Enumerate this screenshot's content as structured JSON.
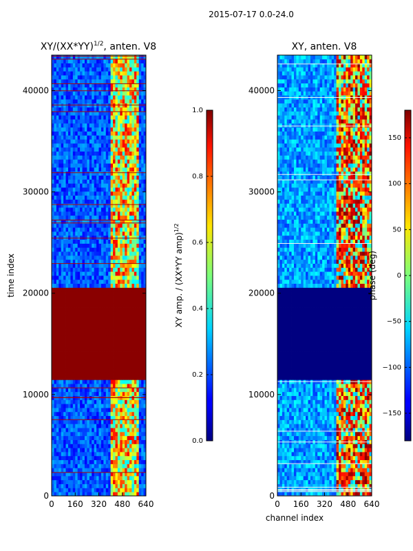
{
  "figure": {
    "title": "2015-07-17 0.0-24.0"
  },
  "chart_data": [
    {
      "type": "heatmap",
      "title_main": "XY/(XX*YY)",
      "title_sup": "1/2",
      "title_rest": ", anten. V8",
      "xlabel": "",
      "ylabel": "time index",
      "xlim": [
        0,
        640
      ],
      "ylim": [
        0,
        43500
      ],
      "xticks": [
        0,
        160,
        320,
        480,
        640
      ],
      "yticks": [
        0,
        10000,
        20000,
        30000,
        40000
      ],
      "colorbar": {
        "label_main": "XY amp. / (XX*YY amp)",
        "label_sup": "1/2",
        "range": [
          0.0,
          1.0
        ],
        "ticks": [
          "0.0",
          "0.2",
          "0.4",
          "0.6",
          "0.8",
          "1.0"
        ],
        "colormap": "jet"
      },
      "saturated_band": [
        11300,
        20400
      ]
    },
    {
      "type": "heatmap",
      "title": "XY, anten. V8",
      "xlabel": "channel index",
      "ylabel": "",
      "xlim": [
        0,
        640
      ],
      "ylim": [
        0,
        43500
      ],
      "xticks": [
        0,
        160,
        320,
        480,
        640
      ],
      "yticks": [
        0,
        10000,
        20000,
        30000,
        40000
      ],
      "colorbar": {
        "label": "phase (deg)",
        "range": [
          -180,
          180
        ],
        "ticks": [
          "150",
          "100",
          "50",
          "0",
          "−50",
          "−100",
          "−150"
        ],
        "colormap": "jet"
      },
      "minimum_band": [
        11300,
        20400
      ]
    }
  ]
}
